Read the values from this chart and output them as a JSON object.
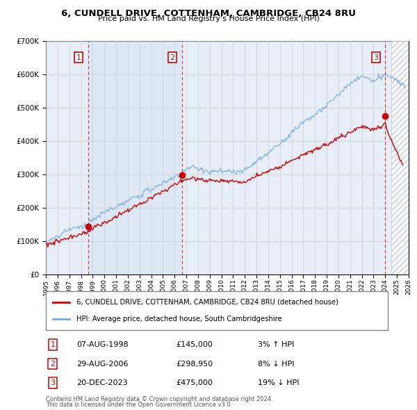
{
  "title": "6, CUNDELL DRIVE, COTTENHAM, CAMBRIDGE, CB24 8RU",
  "subtitle": "Price paid vs. HM Land Registry's House Price Index (HPI)",
  "background_color": "#ffffff",
  "plot_bg_color": "#e8eef8",
  "grid_color": "#cccccc",
  "hpi_line_color": "#7aaadd",
  "price_line_color": "#cc0000",
  "shade_color": "#dde8f5",
  "transactions": [
    {
      "num": 1,
      "date_label": "07-AUG-1998",
      "date_x": 1998.6,
      "price": 145000,
      "price_str": "£145,000",
      "pct": "3%",
      "dir": "↑"
    },
    {
      "num": 2,
      "date_label": "29-AUG-2006",
      "date_x": 2006.65,
      "price": 298950,
      "price_str": "£298,950",
      "pct": "8%",
      "dir": "↓"
    },
    {
      "num": 3,
      "date_label": "20-DEC-2023",
      "date_x": 2023.97,
      "price": 475000,
      "price_str": "£475,000",
      "pct": "19%",
      "dir": "↓"
    }
  ],
  "legend_entry1": "6, CUNDELL DRIVE, COTTENHAM, CAMBRIDGE, CB24 8RU (detached house)",
  "legend_entry2": "HPI: Average price, detached house, South Cambridgeshire",
  "footer1": "Contains HM Land Registry data © Crown copyright and database right 2024.",
  "footer2": "This data is licensed under the Open Government Licence v3.0.",
  "xmin": 1995,
  "xmax": 2026,
  "ymin": 0,
  "ymax": 700000,
  "hatch_start": 2024.5
}
